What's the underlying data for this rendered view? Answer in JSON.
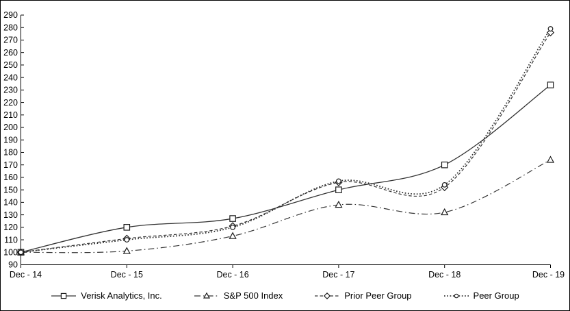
{
  "chart_data": {
    "type": "line",
    "title": "",
    "xlabel": "",
    "ylabel": "",
    "categories": [
      "Dec - 14",
      "Dec - 15",
      "Dec - 16",
      "Dec - 17",
      "Dec - 18",
      "Dec - 19"
    ],
    "ylim": [
      90,
      290
    ],
    "y_ticks": [
      90,
      100,
      110,
      120,
      130,
      140,
      150,
      160,
      170,
      180,
      190,
      200,
      210,
      220,
      230,
      240,
      250,
      260,
      270,
      280,
      290
    ],
    "grid": false,
    "smoothed_lines": true,
    "legend_position": "bottom",
    "series": [
      {
        "name": "Verisk Analytics, Inc.",
        "marker": "square",
        "line_style": "solid",
        "values": [
          100,
          120,
          127,
          150,
          170,
          234
        ]
      },
      {
        "name": "S&P 500 Index",
        "marker": "triangle",
        "line_style": "dash-dot",
        "values": [
          100,
          101,
          113,
          138,
          132,
          174
        ]
      },
      {
        "name": "Prior Peer Group",
        "marker": "diamond",
        "line_style": "dashed",
        "values": [
          100,
          111,
          121,
          156,
          152,
          276
        ]
      },
      {
        "name": "Peer Group",
        "marker": "circle",
        "line_style": "dotted",
        "values": [
          100,
          110,
          120,
          157,
          154,
          279
        ]
      }
    ],
    "colors": {
      "line": "#333333",
      "marker_stroke": "#1a1a1a",
      "marker_fill": "#ffffff",
      "axis": "#000000",
      "text": "#000000",
      "background": "#ffffff",
      "border": "#000000"
    }
  }
}
